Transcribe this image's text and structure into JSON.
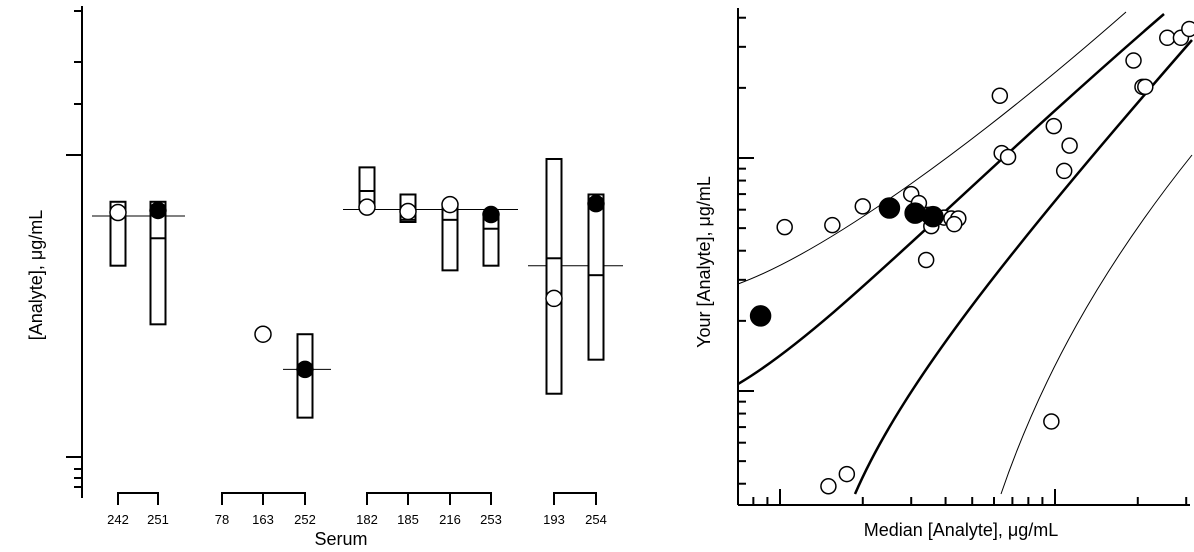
{
  "chart_data": [
    {
      "type": "boxplot",
      "xlabel": "Serum",
      "ylabel": "[Analyte], μg/mL",
      "y_scale": "log",
      "groups": [
        {
          "serums": [
            "242",
            "251"
          ],
          "median": 0.628,
          "items": [
            {
              "label": "242",
              "marker": "open",
              "value": 0.645,
              "box_low": 0.43,
              "box_high": 0.7,
              "inner_lines": [
                0.645
              ]
            },
            {
              "label": "251",
              "marker": "filled",
              "value": 0.655,
              "box_low": 0.275,
              "box_high": 0.7,
              "inner_lines": [
                0.53
              ]
            }
          ]
        },
        {
          "serums": [
            "78",
            "163",
            "252"
          ],
          "median": 0.195,
          "items": [
            {
              "label": "78",
              "marker": null,
              "value": null,
              "box_low": null,
              "box_high": null,
              "inner_lines": []
            },
            {
              "label": "163",
              "marker": "open",
              "value": 0.255,
              "box_low": null,
              "box_high": null,
              "inner_lines": []
            },
            {
              "label": "252",
              "marker": "filled",
              "value": 0.195,
              "box_low": 0.135,
              "box_high": 0.255,
              "inner_lines": []
            }
          ]
        },
        {
          "serums": [
            "182",
            "185",
            "216",
            "253"
          ],
          "median": 0.66,
          "items": [
            {
              "label": "182",
              "marker": "open",
              "value": 0.672,
              "box_low": 0.67,
              "box_high": 0.91,
              "inner_lines": [
                0.76
              ]
            },
            {
              "label": "185",
              "marker": "open",
              "value": 0.65,
              "box_low": 0.6,
              "box_high": 0.74,
              "inner_lines": [
                0.61
              ]
            },
            {
              "label": "216",
              "marker": "open",
              "value": 0.685,
              "box_low": 0.415,
              "box_high": 0.69,
              "inner_lines": [
                0.61
              ]
            },
            {
              "label": "253",
              "marker": "filled",
              "value": 0.635,
              "box_low": 0.43,
              "box_high": 0.63,
              "inner_lines": [
                0.57
              ]
            }
          ]
        },
        {
          "serums": [
            "193",
            "254"
          ],
          "median": 0.43,
          "items": [
            {
              "label": "193",
              "marker": "open",
              "value": 0.335,
              "box_low": 0.162,
              "box_high": 0.97,
              "inner_lines": [
                0.455
              ]
            },
            {
              "label": "254",
              "marker": "filled",
              "value": 0.69,
              "box_low": 0.21,
              "box_high": 0.74,
              "inner_lines": [
                0.4
              ]
            }
          ]
        }
      ]
    },
    {
      "type": "scatter",
      "xlabel": "Median [Analyte], μg/mL",
      "ylabel": "Your [Analyte], μg/mL",
      "x_scale": "log",
      "y_scale": "log",
      "xlim": [
        0.03,
        3
      ],
      "ylim": [
        0.03,
        3
      ],
      "points": [
        {
          "x": 0.104,
          "y": 0.505,
          "marker": "open"
        },
        {
          "x": 0.155,
          "y": 0.515,
          "marker": "open"
        },
        {
          "x": 0.2,
          "y": 0.62,
          "marker": "open"
        },
        {
          "x": 0.3,
          "y": 0.7,
          "marker": "open"
        },
        {
          "x": 0.32,
          "y": 0.64,
          "marker": "open"
        },
        {
          "x": 0.345,
          "y": 0.57,
          "marker": "open"
        },
        {
          "x": 0.355,
          "y": 0.51,
          "marker": "open"
        },
        {
          "x": 0.34,
          "y": 0.365,
          "marker": "open"
        },
        {
          "x": 0.395,
          "y": 0.555,
          "marker": "open"
        },
        {
          "x": 0.42,
          "y": 0.55,
          "marker": "open"
        },
        {
          "x": 0.445,
          "y": 0.55,
          "marker": "open"
        },
        {
          "x": 0.43,
          "y": 0.52,
          "marker": "open"
        },
        {
          "x": 0.63,
          "y": 1.85,
          "marker": "open"
        },
        {
          "x": 0.64,
          "y": 1.05,
          "marker": "open"
        },
        {
          "x": 0.675,
          "y": 1.01,
          "marker": "open"
        },
        {
          "x": 0.99,
          "y": 1.37,
          "marker": "open"
        },
        {
          "x": 1.08,
          "y": 0.88,
          "marker": "open"
        },
        {
          "x": 1.13,
          "y": 1.13,
          "marker": "open"
        },
        {
          "x": 1.93,
          "y": 2.62,
          "marker": "open"
        },
        {
          "x": 2.08,
          "y": 2.02,
          "marker": "open"
        },
        {
          "x": 2.13,
          "y": 2.02,
          "marker": "open"
        },
        {
          "x": 2.56,
          "y": 3.28,
          "marker": "open"
        },
        {
          "x": 2.87,
          "y": 3.28,
          "marker": "open"
        },
        {
          "x": 3.08,
          "y": 3.58,
          "marker": "open"
        },
        {
          "x": 0.15,
          "y": 0.039,
          "marker": "open"
        },
        {
          "x": 0.175,
          "y": 0.044,
          "marker": "open"
        },
        {
          "x": 0.97,
          "y": 0.074,
          "marker": "open"
        },
        {
          "x": 0.085,
          "y": 0.21,
          "marker": "filled"
        },
        {
          "x": 0.25,
          "y": 0.61,
          "marker": "filled"
        },
        {
          "x": 0.31,
          "y": 0.58,
          "marker": "filled"
        },
        {
          "x": 0.36,
          "y": 0.56,
          "marker": "filled"
        }
      ]
    }
  ]
}
